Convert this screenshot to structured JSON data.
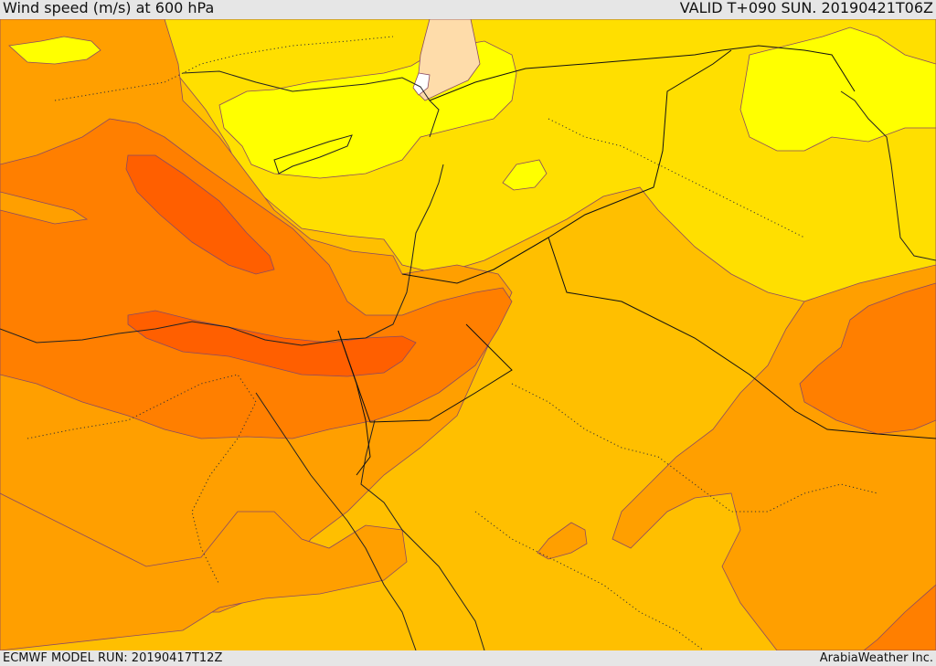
{
  "header": {
    "title": "Wind speed (m/s) at 600 hPa",
    "valid": "VALID T+090 SUN. 20190421T06Z"
  },
  "footer": {
    "model_run": "ECMWF MODEL RUN: 20190417T12Z",
    "credit": "ArabiaWeather Inc."
  },
  "colors": {
    "lightest": "#ffffff",
    "pale": "#fedcaa",
    "yellow": "#ffff00",
    "light_gold": "#ffdf00",
    "gold": "#ffbf00",
    "amber": "#ff9f00",
    "orange": "#ff7f00",
    "deep_orange": "#ff5f00"
  }
}
